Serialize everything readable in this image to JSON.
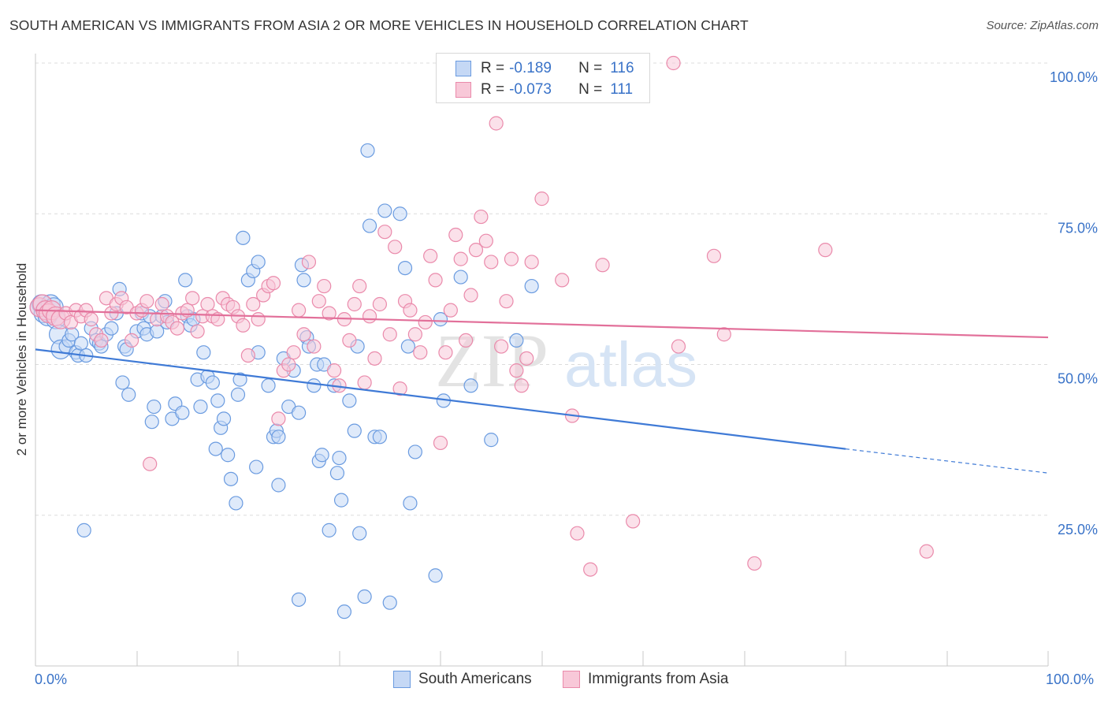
{
  "title": "SOUTH AMERICAN VS IMMIGRANTS FROM ASIA 2 OR MORE VEHICLES IN HOUSEHOLD CORRELATION CHART",
  "source": "Source: ZipAtlas.com",
  "watermark": {
    "zip": "ZIP",
    "atlas": "atlas"
  },
  "legend": {
    "rows": [
      {
        "r_label": "R =",
        "r_value": "-0.189",
        "n_label": "N =",
        "n_value": "116",
        "color": "#6a9be0",
        "fill": "#c5d8f5"
      },
      {
        "r_label": "R =",
        "r_value": "-0.073",
        "n_label": "N =",
        "n_value": "111",
        "color": "#ea8aab",
        "fill": "#f8c8d8"
      }
    ]
  },
  "bottom_legend": [
    {
      "label": "South Americans",
      "color": "#6a9be0",
      "fill": "#c5d8f5"
    },
    {
      "label": "Immigrants from Asia",
      "color": "#ea8aab",
      "fill": "#f8c8d8"
    }
  ],
  "x_tick_labels": {
    "left": "0.0%",
    "right": "100.0%"
  },
  "chart_data": {
    "type": "scatter",
    "ylabel": "2 or more Vehicles in Household",
    "xlim": [
      0,
      100
    ],
    "ylim": [
      0,
      100
    ],
    "y_ticks": [
      {
        "value": 100,
        "label": "100.0%"
      },
      {
        "value": 75,
        "label": "75.0%"
      },
      {
        "value": 50,
        "label": "50.0%"
      },
      {
        "value": 25,
        "label": "25.0%"
      }
    ],
    "grid": true,
    "series": [
      {
        "name": "South Americans",
        "color": "#3f7ad6",
        "trend": {
          "x0": 0,
          "y0": 52.5,
          "x1": 80,
          "y1": 36,
          "x_dash_end": 100,
          "y_dash_end": 32
        },
        "points": [
          [
            0.4,
            59.5
          ],
          [
            0.6,
            60
          ],
          [
            0.8,
            58.5
          ],
          [
            1,
            59
          ],
          [
            1.2,
            58
          ],
          [
            1.5,
            60
          ],
          [
            2,
            57.5
          ],
          [
            1.8,
            59.5
          ],
          [
            2.3,
            55
          ],
          [
            2.5,
            52.5
          ],
          [
            3,
            53
          ],
          [
            3.3,
            54
          ],
          [
            3.6,
            55
          ],
          [
            4,
            52
          ],
          [
            4.2,
            51.5
          ],
          [
            4.5,
            53.5
          ],
          [
            5,
            51.5
          ],
          [
            5.5,
            56
          ],
          [
            6,
            54
          ],
          [
            6.3,
            53.5
          ],
          [
            6.5,
            53
          ],
          [
            7,
            55
          ],
          [
            7.5,
            56
          ],
          [
            8,
            58.5
          ],
          [
            8.3,
            62.5
          ],
          [
            8.6,
            47
          ],
          [
            8.8,
            53
          ],
          [
            9,
            52.5
          ],
          [
            9.2,
            45
          ],
          [
            10,
            55.5
          ],
          [
            10.5,
            58.5
          ],
          [
            10.7,
            56
          ],
          [
            11,
            55
          ],
          [
            11.3,
            58
          ],
          [
            11.5,
            40.5
          ],
          [
            11.7,
            43
          ],
          [
            12,
            55.5
          ],
          [
            12.5,
            58
          ],
          [
            13,
            57
          ],
          [
            12.8,
            60.5
          ],
          [
            13.5,
            41
          ],
          [
            13.8,
            43.5
          ],
          [
            14.5,
            42
          ],
          [
            15,
            58
          ],
          [
            14.8,
            64
          ],
          [
            15.3,
            56.5
          ],
          [
            15.6,
            57.5
          ],
          [
            16,
            47.5
          ],
          [
            16.3,
            43
          ],
          [
            16.6,
            52
          ],
          [
            17,
            48
          ],
          [
            17.5,
            47
          ],
          [
            17.8,
            36
          ],
          [
            18,
            44
          ],
          [
            18.3,
            39.5
          ],
          [
            18.6,
            41
          ],
          [
            19,
            35
          ],
          [
            19.3,
            31
          ],
          [
            20,
            45
          ],
          [
            20.2,
            47.5
          ],
          [
            19.8,
            27
          ],
          [
            20.5,
            71
          ],
          [
            21,
            64
          ],
          [
            21.5,
            65.5
          ],
          [
            22,
            67
          ],
          [
            22,
            52
          ],
          [
            21.8,
            33
          ],
          [
            23,
            46.5
          ],
          [
            23.5,
            38
          ],
          [
            23.8,
            39
          ],
          [
            24,
            38
          ],
          [
            24,
            30
          ],
          [
            24.5,
            51
          ],
          [
            25,
            43
          ],
          [
            25.5,
            49
          ],
          [
            26,
            42
          ],
          [
            26.3,
            66.5
          ],
          [
            26.5,
            64
          ],
          [
            26.8,
            54.5
          ],
          [
            27,
            53
          ],
          [
            27.5,
            46.5
          ],
          [
            27.8,
            50
          ],
          [
            28,
            34
          ],
          [
            28.3,
            35
          ],
          [
            28.5,
            50
          ],
          [
            29,
            22.5
          ],
          [
            29.5,
            46.5
          ],
          [
            29.8,
            32
          ],
          [
            30,
            34.5
          ],
          [
            30.2,
            27.5
          ],
          [
            30.5,
            9
          ],
          [
            31,
            44
          ],
          [
            31.5,
            39
          ],
          [
            31.8,
            53
          ],
          [
            32,
            22
          ],
          [
            32.5,
            11.5
          ],
          [
            32.8,
            85.5
          ],
          [
            33,
            73
          ],
          [
            33.5,
            38
          ],
          [
            34,
            38
          ],
          [
            34.5,
            75.5
          ],
          [
            35,
            10.5
          ],
          [
            36,
            75
          ],
          [
            36.5,
            66
          ],
          [
            36.8,
            53
          ],
          [
            37,
            27
          ],
          [
            37.5,
            35.5
          ],
          [
            39.5,
            15
          ],
          [
            40,
            57.5
          ],
          [
            40.3,
            44
          ],
          [
            42,
            64.5
          ],
          [
            43,
            46.5
          ],
          [
            45,
            37.5
          ],
          [
            47.5,
            54
          ],
          [
            49,
            63
          ],
          [
            4.8,
            22.5
          ],
          [
            26,
            11
          ]
        ]
      },
      {
        "name": "Immigrants from Asia",
        "color": "#e2709a",
        "trend": {
          "x0": 0,
          "y0": 59,
          "x1": 100,
          "y1": 54.5
        },
        "points": [
          [
            0.4,
            59.5
          ],
          [
            0.7,
            60
          ],
          [
            1,
            59
          ],
          [
            1.3,
            58.5
          ],
          [
            1.6,
            59
          ],
          [
            2,
            58
          ],
          [
            2.5,
            57.5
          ],
          [
            3,
            58.5
          ],
          [
            3.5,
            57
          ],
          [
            4,
            59
          ],
          [
            4.5,
            58
          ],
          [
            5,
            59
          ],
          [
            5.5,
            57.5
          ],
          [
            6,
            55
          ],
          [
            6.5,
            54
          ],
          [
            7,
            61
          ],
          [
            7.5,
            58.5
          ],
          [
            8,
            60
          ],
          [
            8.5,
            61
          ],
          [
            9,
            59.5
          ],
          [
            9.5,
            54
          ],
          [
            10,
            58.5
          ],
          [
            10.5,
            59
          ],
          [
            11,
            60.5
          ],
          [
            11.3,
            33.5
          ],
          [
            12,
            57.5
          ],
          [
            12.5,
            60
          ],
          [
            13,
            58
          ],
          [
            13.5,
            57
          ],
          [
            14,
            56
          ],
          [
            14.5,
            58.5
          ],
          [
            15,
            59
          ],
          [
            15.5,
            61
          ],
          [
            16,
            55.5
          ],
          [
            16.5,
            58
          ],
          [
            17,
            60
          ],
          [
            17.5,
            58
          ],
          [
            18,
            57.5
          ],
          [
            18.5,
            61
          ],
          [
            19,
            60
          ],
          [
            19.5,
            59.5
          ],
          [
            20,
            58
          ],
          [
            20.5,
            56.5
          ],
          [
            21,
            51.5
          ],
          [
            21.5,
            60
          ],
          [
            22,
            57.5
          ],
          [
            22.5,
            61.5
          ],
          [
            23,
            63
          ],
          [
            23.5,
            63.5
          ],
          [
            24,
            41
          ],
          [
            24.5,
            49
          ],
          [
            25,
            50
          ],
          [
            25.5,
            52
          ],
          [
            26,
            59
          ],
          [
            26.5,
            55
          ],
          [
            27,
            67
          ],
          [
            27.5,
            53
          ],
          [
            28,
            60.5
          ],
          [
            28.5,
            63
          ],
          [
            29,
            58.5
          ],
          [
            29.5,
            49
          ],
          [
            30,
            46.5
          ],
          [
            30.5,
            57.5
          ],
          [
            31,
            54
          ],
          [
            31.5,
            60
          ],
          [
            32,
            63
          ],
          [
            32.5,
            47
          ],
          [
            33,
            58
          ],
          [
            33.5,
            51
          ],
          [
            34,
            60
          ],
          [
            34.5,
            72
          ],
          [
            35,
            55
          ],
          [
            35.5,
            69.5
          ],
          [
            36,
            46
          ],
          [
            36.5,
            60.5
          ],
          [
            37,
            59
          ],
          [
            37.5,
            55
          ],
          [
            38,
            52
          ],
          [
            38.5,
            57
          ],
          [
            39,
            68
          ],
          [
            39.5,
            64
          ],
          [
            40,
            37
          ],
          [
            40.5,
            52
          ],
          [
            41,
            59
          ],
          [
            41.5,
            71.5
          ],
          [
            42,
            67.5
          ],
          [
            42.5,
            54
          ],
          [
            43,
            61.5
          ],
          [
            43.5,
            69
          ],
          [
            44,
            74.5
          ],
          [
            44.5,
            70.5
          ],
          [
            45,
            67
          ],
          [
            45.5,
            90
          ],
          [
            46,
            53
          ],
          [
            46.5,
            60.5
          ],
          [
            47,
            67.5
          ],
          [
            47.5,
            49
          ],
          [
            48,
            46.5
          ],
          [
            48.5,
            51
          ],
          [
            49,
            67
          ],
          [
            50,
            77.5
          ],
          [
            52,
            64
          ],
          [
            53,
            41.5
          ],
          [
            53.5,
            22
          ],
          [
            54.5,
            100
          ],
          [
            54.8,
            16
          ],
          [
            56,
            66.5
          ],
          [
            59,
            24
          ],
          [
            63,
            100
          ],
          [
            63.5,
            53
          ],
          [
            67,
            68
          ],
          [
            68,
            55
          ],
          [
            71,
            17
          ],
          [
            78,
            69
          ],
          [
            88,
            19
          ]
        ]
      }
    ]
  }
}
